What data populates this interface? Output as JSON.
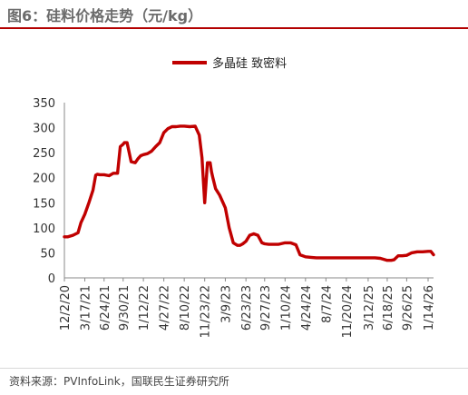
{
  "figure": {
    "title": "图6：硅料价格走势（元/kg）",
    "source": "资料来源：PVInfoLink，国联民生证券研究所"
  },
  "chart_data": {
    "type": "line",
    "title": "",
    "xlabel": "",
    "ylabel": "",
    "ylim": [
      0,
      350
    ],
    "yticks": [
      0,
      50,
      100,
      150,
      200,
      250,
      300,
      350
    ],
    "grid": false,
    "legend_position": "top-center",
    "x_tick_labels": [
      "12/2/20",
      "3/17/21",
      "6/24/21",
      "9/30/21",
      "1/12/22",
      "4/27/22",
      "8/10/22",
      "11/23/22",
      "3/9/23",
      "6/23/23",
      "9/27/23",
      "1/10/24",
      "4/24/24",
      "8/7/24",
      "11/20/24",
      "3/12/25",
      "6/18/25",
      "9/26/25",
      "1/14/26"
    ],
    "series": [
      {
        "name": "多晶硅 致密料",
        "color": "#c00000",
        "x": [
          "2020-12-02",
          "2020-12-20",
          "2021-01-15",
          "2021-02-10",
          "2021-02-25",
          "2021-03-17",
          "2021-04-07",
          "2021-04-28",
          "2021-05-12",
          "2021-05-20",
          "2021-06-02",
          "2021-06-24",
          "2021-07-20",
          "2021-08-10",
          "2021-09-01",
          "2021-09-15",
          "2021-09-30",
          "2021-10-06",
          "2021-10-20",
          "2021-11-10",
          "2021-12-01",
          "2021-12-15",
          "2021-12-29",
          "2022-01-12",
          "2022-02-02",
          "2022-02-23",
          "2022-03-16",
          "2022-04-06",
          "2022-04-27",
          "2022-05-18",
          "2022-06-08",
          "2022-06-29",
          "2022-07-20",
          "2022-08-10",
          "2022-09-07",
          "2022-10-05",
          "2022-10-26",
          "2022-11-09",
          "2022-11-23",
          "2022-12-07",
          "2022-12-21",
          "2022-12-28",
          "2023-01-04",
          "2023-01-18",
          "2023-02-08",
          "2023-03-09",
          "2023-03-29",
          "2023-04-19",
          "2023-05-10",
          "2023-05-24",
          "2023-06-07",
          "2023-06-23",
          "2023-07-12",
          "2023-08-02",
          "2023-08-23",
          "2023-09-13",
          "2023-09-27",
          "2023-10-18",
          "2023-11-08",
          "2023-12-06",
          "2024-01-10",
          "2024-02-07",
          "2024-03-06",
          "2024-03-27",
          "2024-04-24",
          "2024-05-22",
          "2024-06-19",
          "2024-07-17",
          "2024-08-07",
          "2024-09-04",
          "2024-10-02",
          "2024-11-20",
          "2025-01-22",
          "2025-03-12",
          "2025-04-16",
          "2025-05-14",
          "2025-06-18",
          "2025-07-09",
          "2025-07-23",
          "2025-08-13",
          "2025-09-03",
          "2025-09-26",
          "2025-10-22",
          "2025-11-19",
          "2025-12-17",
          "2026-01-14",
          "2026-01-28",
          "2026-02-11"
        ],
        "values": [
          82,
          82,
          85,
          90,
          110,
          127,
          150,
          175,
          205,
          207,
          206,
          206,
          204,
          209,
          209,
          262,
          267,
          270,
          270,
          232,
          230,
          238,
          244,
          246,
          248,
          253,
          262,
          270,
          290,
          298,
          302,
          302,
          303,
          303,
          302,
          303,
          285,
          240,
          150,
          230,
          230,
          212,
          200,
          178,
          165,
          140,
          100,
          70,
          65,
          65,
          68,
          73,
          85,
          88,
          85,
          70,
          68,
          67,
          67,
          67,
          70,
          70,
          66,
          46,
          42,
          41,
          40,
          40,
          40,
          40,
          40,
          40,
          40,
          40,
          40,
          39,
          35,
          35,
          36,
          44,
          44,
          45,
          50,
          52,
          52,
          53,
          53,
          46
        ]
      }
    ]
  }
}
